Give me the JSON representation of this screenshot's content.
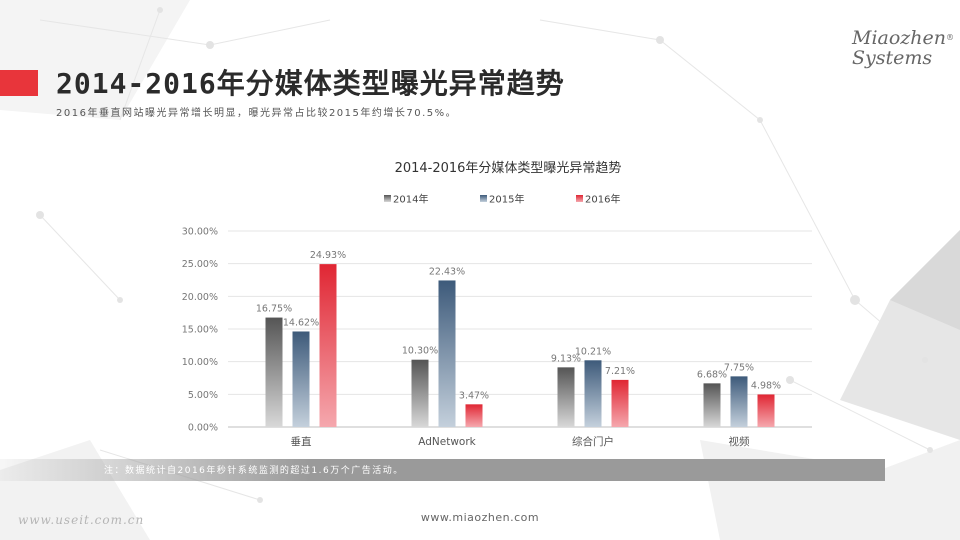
{
  "slide": {
    "title": "2014-2016年分媒体类型曝光异常趋势",
    "subtitle": "2016年垂直网站曝光异常增长明显，曝光异常占比较2015年约增长70.5%。",
    "logo_line1": "Miaozhen",
    "logo_line2": "Systems",
    "logo_mark": "®",
    "note": "注：数据统计自2016年秒针系统监测的超过1.6万个广告活动。",
    "footer_url": "www.miaozhen.com",
    "watermark": "www.useit.com.cn",
    "accent_color": "#e8353b"
  },
  "chart_data": {
    "type": "bar",
    "title": "2014-2016年分媒体类型曝光异常趋势",
    "categories": [
      "垂直",
      "AdNetwork",
      "综合门户",
      "视频"
    ],
    "series": [
      {
        "name": "2014年",
        "values": [
          16.75,
          10.3,
          9.13,
          6.68
        ],
        "labels": [
          "16.75%",
          "10.30%",
          "9.13%",
          "6.68%"
        ],
        "color_top": "#555555",
        "color_bottom": "#d8d8d8"
      },
      {
        "name": "2015年",
        "values": [
          14.62,
          22.43,
          10.21,
          7.75
        ],
        "labels": [
          "14.62%",
          "22.43%",
          "10.21%",
          "7.75%"
        ],
        "color_top": "#3d5a7a",
        "color_bottom": "#c4d0dc"
      },
      {
        "name": "2016年",
        "values": [
          24.93,
          3.47,
          7.21,
          4.98
        ],
        "labels": [
          "24.93%",
          "3.47%",
          "7.21%",
          "4.98%"
        ],
        "color_top": "#e02633",
        "color_bottom": "#f5a8ae"
      }
    ],
    "ylim": [
      0,
      30
    ],
    "yticks": [
      "0.00%",
      "5.00%",
      "10.00%",
      "15.00%",
      "20.00%",
      "25.00%",
      "30.00%"
    ],
    "grid": true,
    "legend_position": "top"
  }
}
